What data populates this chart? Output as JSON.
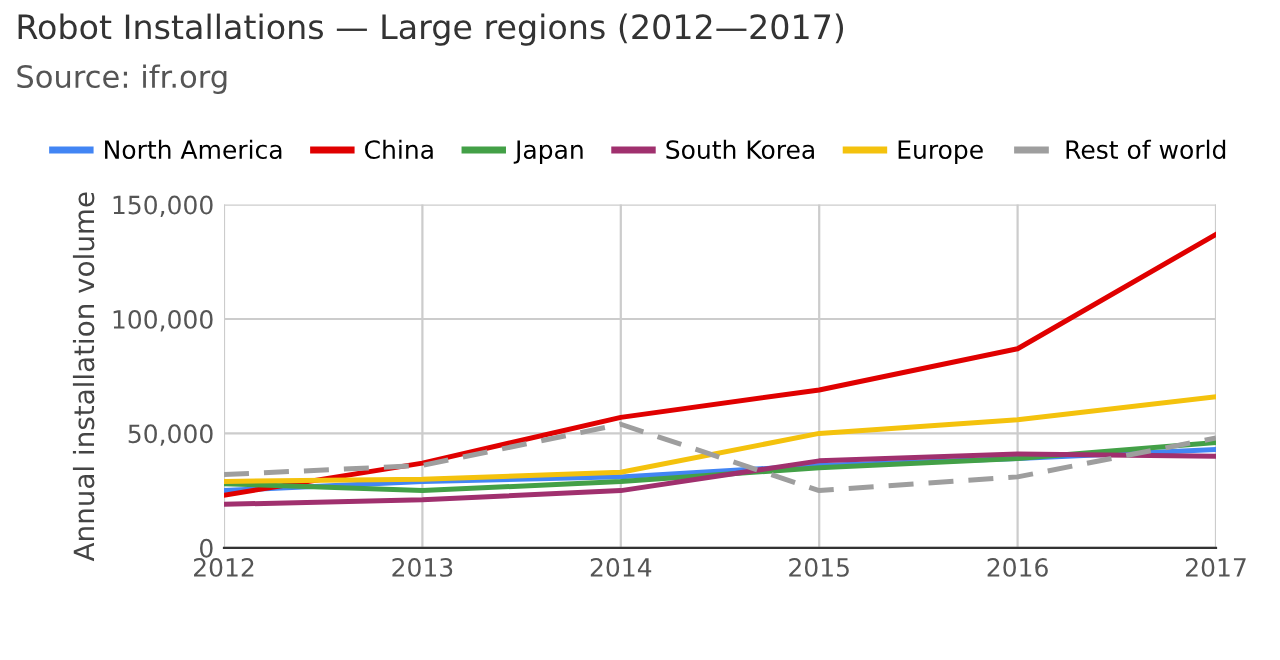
{
  "chart_data": {
    "type": "line",
    "title": "Robot Installations — Large regions (2012—2017)",
    "subtitle": "Source: ifr.org",
    "ylabel": "Annual installation volume",
    "x": [
      2012,
      2013,
      2014,
      2015,
      2016,
      2017
    ],
    "series": [
      {
        "name": "North America",
        "color": "#4285f4",
        "values": [
          25000,
          29000,
          31000,
          36000,
          39000,
          43000
        ]
      },
      {
        "name": "China",
        "color": "#e00000",
        "values": [
          23000,
          37000,
          57000,
          69000,
          87000,
          137000
        ]
      },
      {
        "name": "Japan",
        "color": "#43a047",
        "values": [
          28000,
          25000,
          29000,
          35000,
          39000,
          46000
        ]
      },
      {
        "name": "South Korea",
        "color": "#a0306e",
        "values": [
          19000,
          21000,
          25000,
          38000,
          41000,
          40000
        ]
      },
      {
        "name": "Europe",
        "color": "#f4c20d",
        "values": [
          29000,
          30000,
          33000,
          50000,
          56000,
          66000
        ]
      },
      {
        "name": "Rest of world",
        "color": "#9e9e9e",
        "line_style": "dashed",
        "values": [
          32000,
          36000,
          54000,
          25000,
          31000,
          48000
        ]
      }
    ],
    "xlim": [
      2012,
      2017
    ],
    "xticks": [
      2012,
      2013,
      2014,
      2015,
      2016,
      2017
    ],
    "ylim": [
      0,
      150000
    ],
    "yticks": [
      {
        "value": 0,
        "label": "0"
      },
      {
        "value": 50000,
        "label": "50,000"
      },
      {
        "value": 100000,
        "label": "100,000"
      },
      {
        "value": 150000,
        "label": "150,000"
      }
    ],
    "grid": true,
    "legend": "top",
    "marker": "none"
  }
}
